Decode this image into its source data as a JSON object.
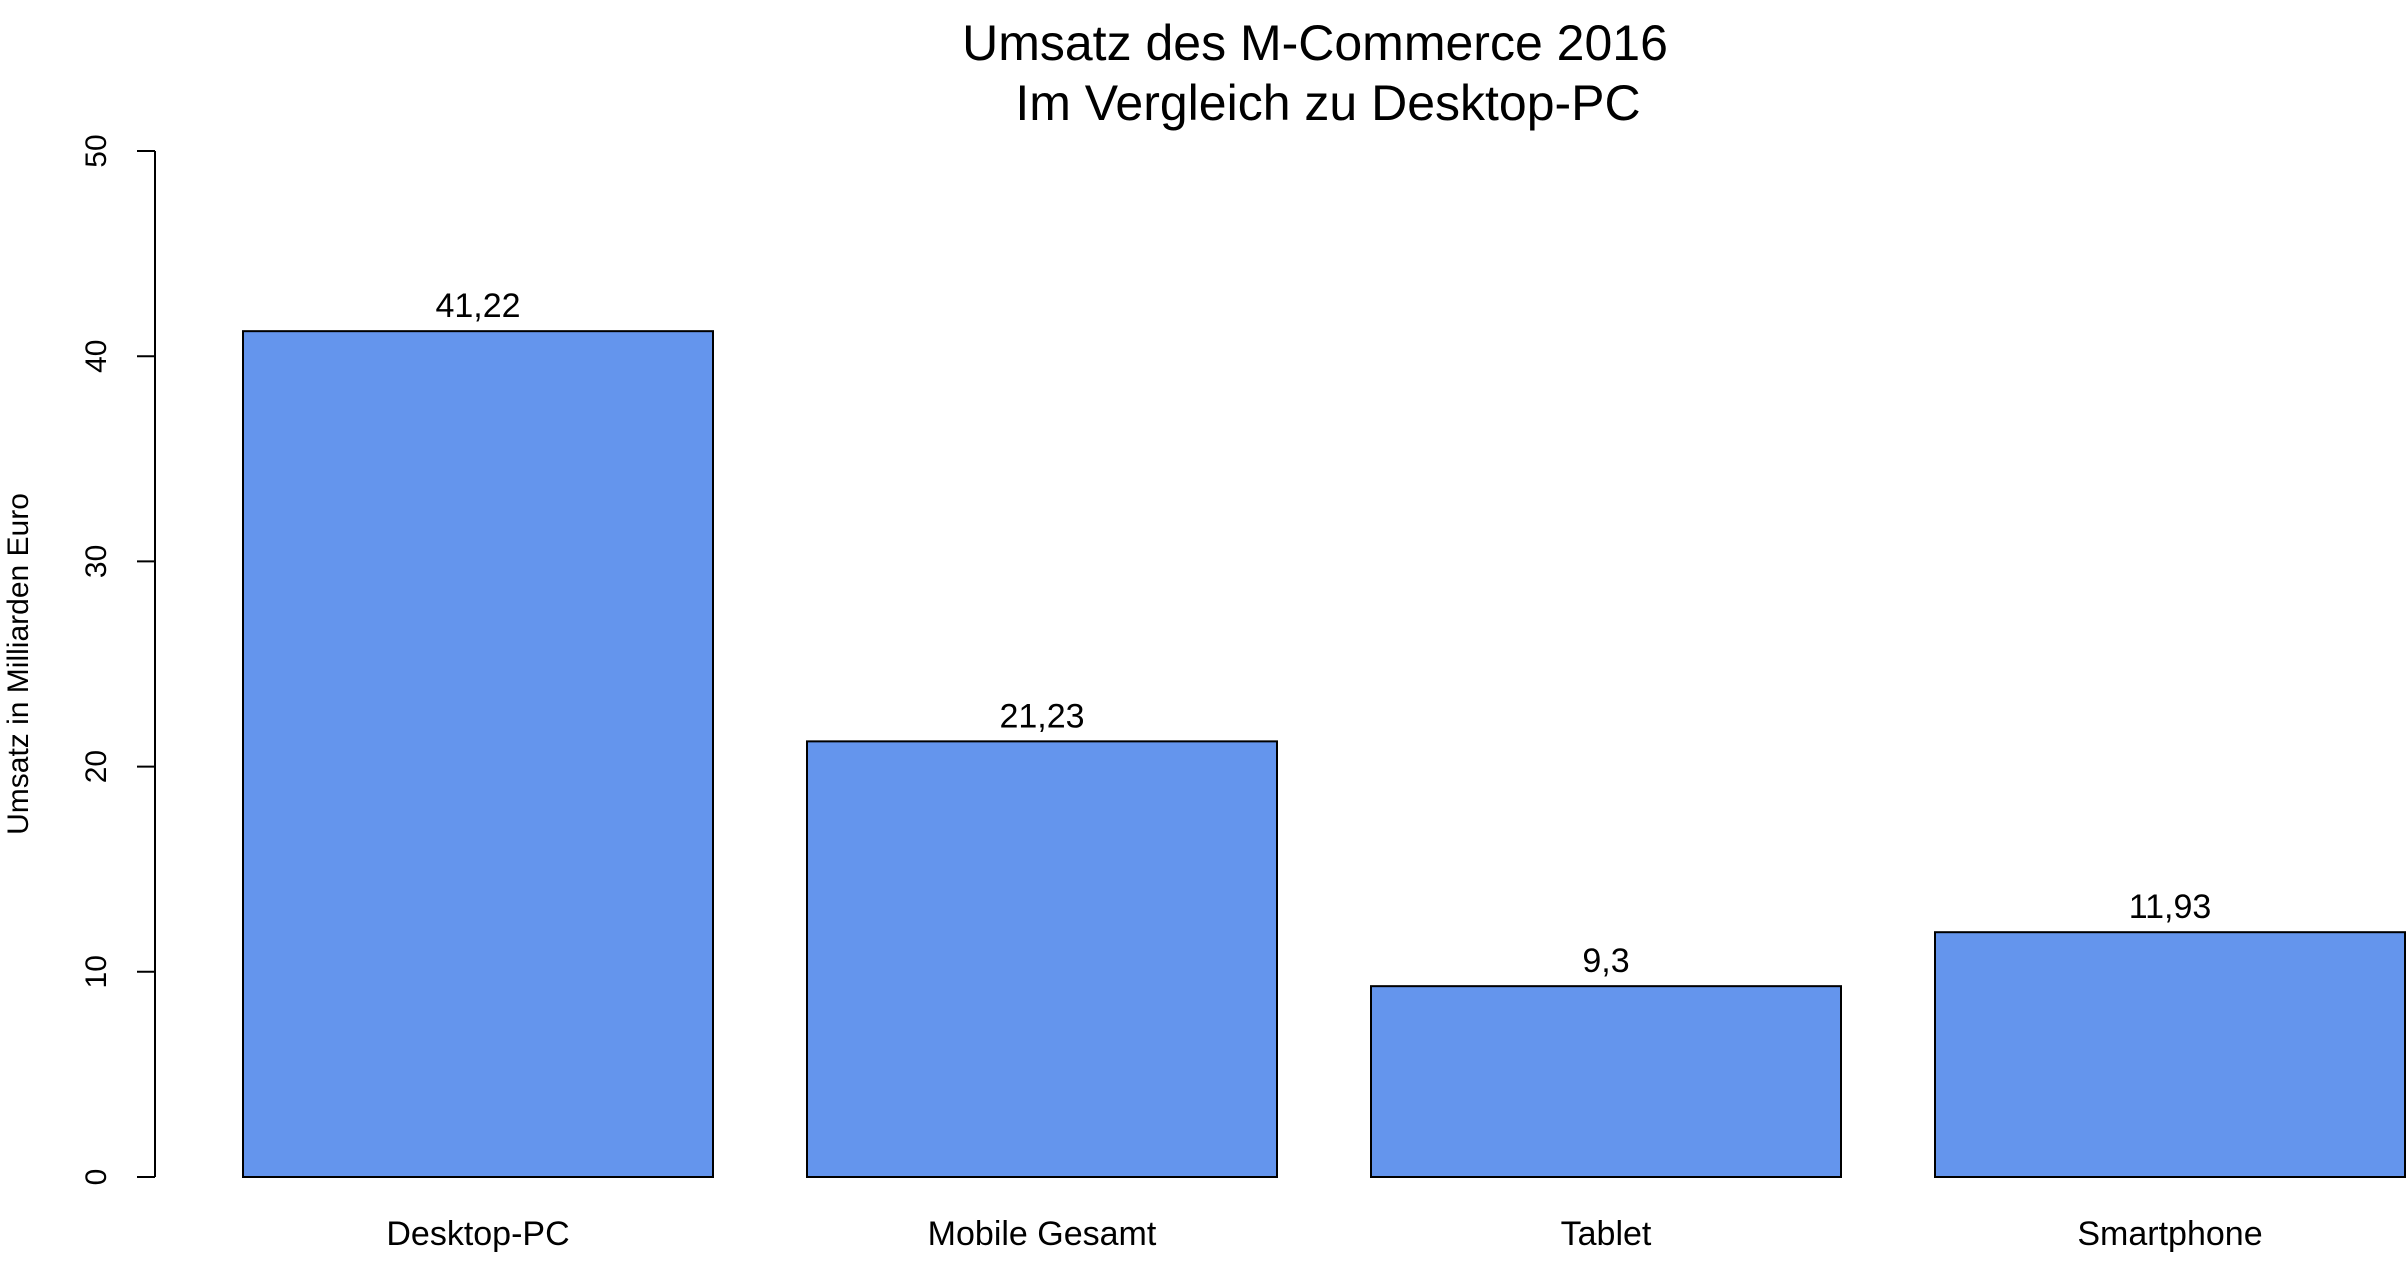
{
  "chart_data": {
    "type": "bar",
    "title": "Umsatz des M-Commerce 2016",
    "subtitle": "Im Vergleich zu Desktop-PC",
    "xlabel": "",
    "ylabel": "Umsatz in Milliarden Euro",
    "categories": [
      "Desktop-PC",
      "Mobile Gesamt",
      "Tablet",
      "Smartphone"
    ],
    "values": [
      41.22,
      21.23,
      9.3,
      11.93
    ],
    "value_labels": [
      "41,22",
      "21,23",
      "9,3",
      "11,93"
    ],
    "ylim": [
      0,
      50
    ],
    "yticks": [
      0,
      10,
      20,
      30,
      40,
      50
    ],
    "ytick_labels": [
      "0",
      "10",
      "20",
      "30",
      "40",
      "50"
    ],
    "grid": false,
    "legend": "none",
    "bar_color": "#6495ED",
    "bar_edge_color": "#000000"
  }
}
